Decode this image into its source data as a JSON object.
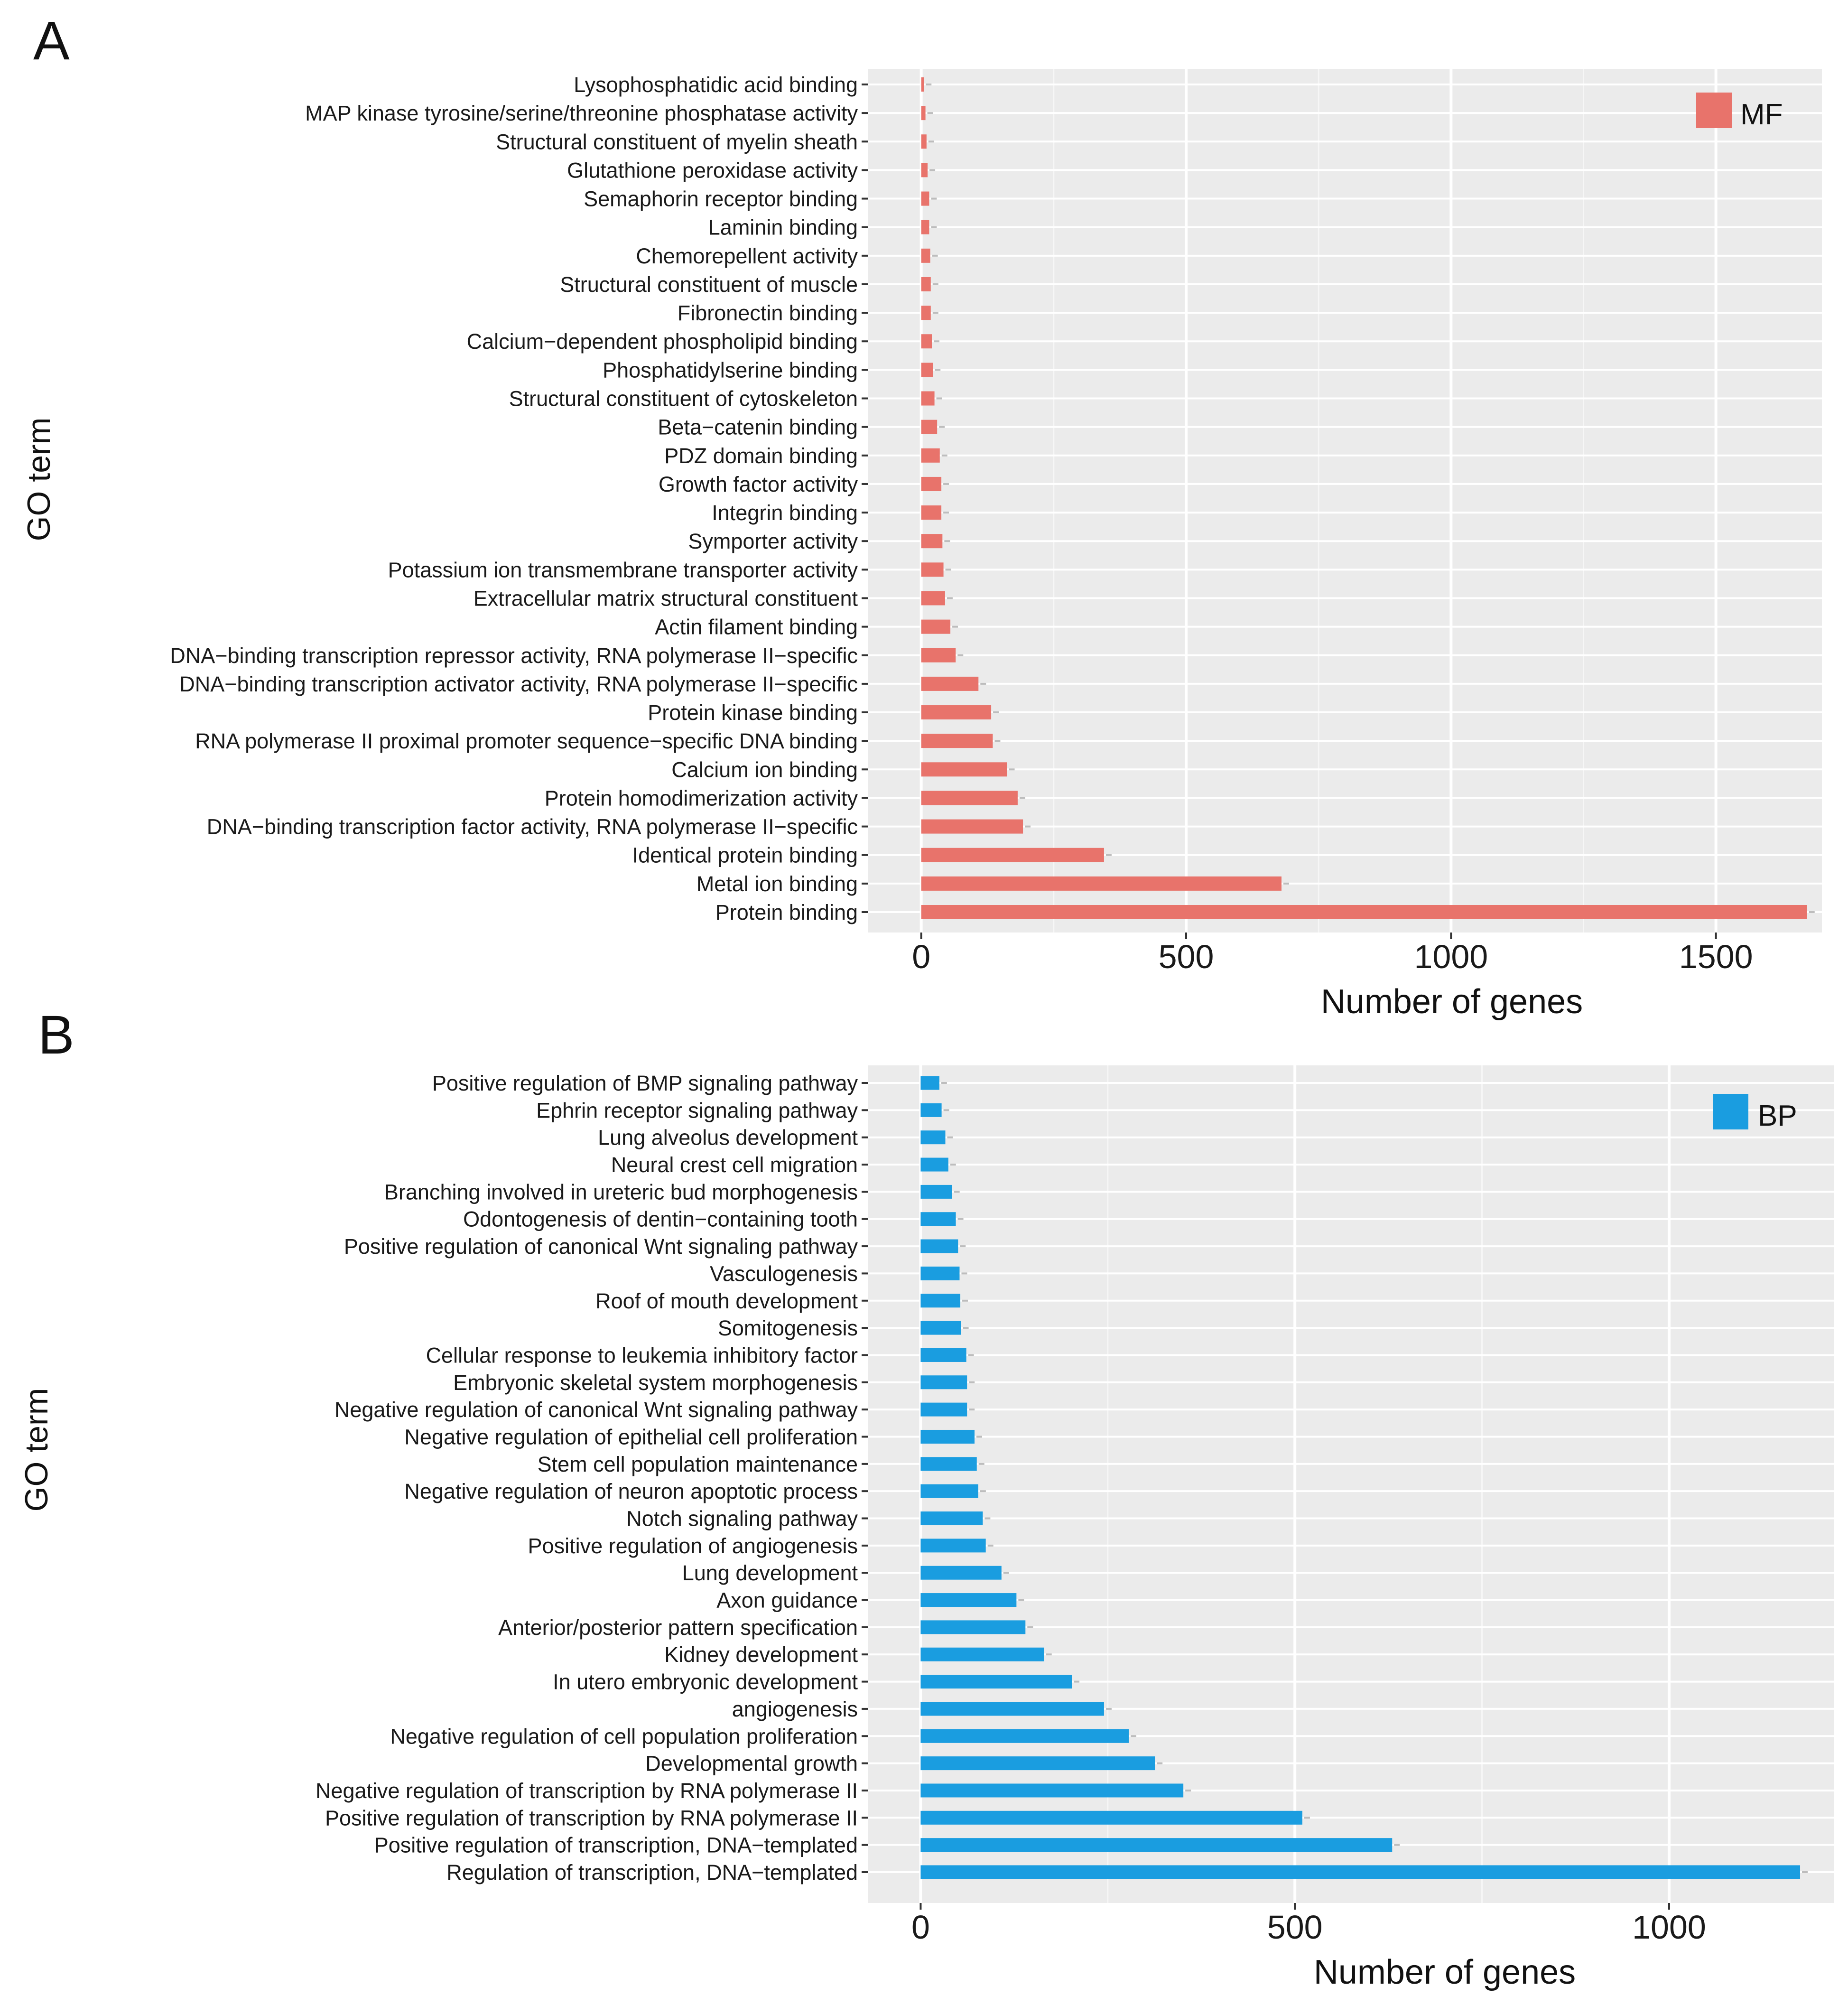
{
  "chart_data": [
    {
      "type": "bar",
      "orientation": "horizontal",
      "panel_label": "A",
      "xlabel": "Number of genes",
      "ylabel": "GO term",
      "xlim": [
        -100,
        1700
      ],
      "xticks": [
        0,
        500,
        1000,
        1500
      ],
      "grid": true,
      "legend": {
        "label": "MF",
        "position": "top-right",
        "color": "#E8736B"
      },
      "bar_color": "#E8736B",
      "categories": [
        "Lysophosphatidic acid binding",
        "MAP kinase tyrosine/serine/threonine phosphatase activity",
        "Structural constituent of myelin sheath",
        "Glutathione peroxidase activity",
        "Semaphorin receptor binding",
        "Laminin binding",
        "Chemorepellent activity",
        "Structural constituent of muscle",
        "Fibronectin binding",
        "Calcium−dependent phospholipid binding",
        "Phosphatidylserine binding",
        "Structural constituent of cytoskeleton",
        "Beta−catenin binding",
        "PDZ domain binding",
        "Growth factor activity",
        "Integrin binding",
        "Symporter activity",
        "Potassium ion transmembrane transporter activity",
        "Extracellular matrix structural constituent",
        "Actin filament binding",
        "DNA−binding transcription repressor activity, RNA polymerase II−specific",
        "DNA−binding transcription activator activity, RNA polymerase II−specific",
        "Protein kinase binding",
        "RNA polymerase II proximal promoter sequence−specific DNA binding",
        "Calcium ion binding",
        "Protein homodimerization activity",
        "DNA−binding transcription factor activity, RNA polymerase II−specific",
        "Identical protein binding",
        "Metal ion binding",
        "Protein binding"
      ],
      "values": [
        5,
        8,
        10,
        12,
        15,
        15,
        17,
        18,
        18,
        20,
        22,
        25,
        30,
        35,
        38,
        38,
        40,
        42,
        45,
        55,
        65,
        108,
        132,
        135,
        162,
        182,
        192,
        345,
        680,
        1672
      ]
    },
    {
      "type": "bar",
      "orientation": "horizontal",
      "panel_label": "B",
      "xlabel": "Number of genes",
      "ylabel": "GO term",
      "xlim": [
        -70,
        1220
      ],
      "xticks": [
        0,
        500,
        1000
      ],
      "grid": true,
      "legend": {
        "label": "BP",
        "position": "top-right",
        "color": "#1A9DE0"
      },
      "bar_color": "#1A9DE0",
      "categories": [
        "Positive regulation of BMP signaling pathway",
        "Ephrin receptor signaling pathway",
        "Lung alveolus development",
        "Neural crest cell migration",
        "Branching involved in ureteric bud morphogenesis",
        "Odontogenesis of dentin−containing tooth",
        "Positive regulation of canonical Wnt signaling pathway",
        "Vasculogenesis",
        "Roof of mouth development",
        "Somitogenesis",
        "Cellular response to leukemia inhibitory factor",
        "Embryonic skeletal system morphogenesis",
        "Negative regulation of canonical Wnt signaling pathway",
        "Negative regulation of epithelial cell proliferation",
        "Stem cell population maintenance",
        "Negative regulation of neuron apoptotic process",
        "Notch signaling pathway",
        "Positive regulation of angiogenesis",
        "Lung development",
        "Axon guidance",
        "Anterior/posterior pattern specification",
        "Kidney development",
        "In utero embryonic development",
        "angiogenesis",
        "Negative regulation of cell population proliferation",
        "Developmental growth",
        "Negative regulation of transcription by RNA polymerase II",
        "Positive regulation of transcription by RNA polymerase II",
        "Positive regulation of transcription, DNA−templated",
        "Regulation of transcription, DNA−templated"
      ],
      "values": [
        25,
        28,
        33,
        37,
        42,
        47,
        50,
        52,
        53,
        54,
        61,
        62,
        62,
        72,
        75,
        77,
        83,
        87,
        108,
        128,
        140,
        165,
        202,
        245,
        278,
        313,
        351,
        510,
        630,
        1175
      ]
    }
  ]
}
